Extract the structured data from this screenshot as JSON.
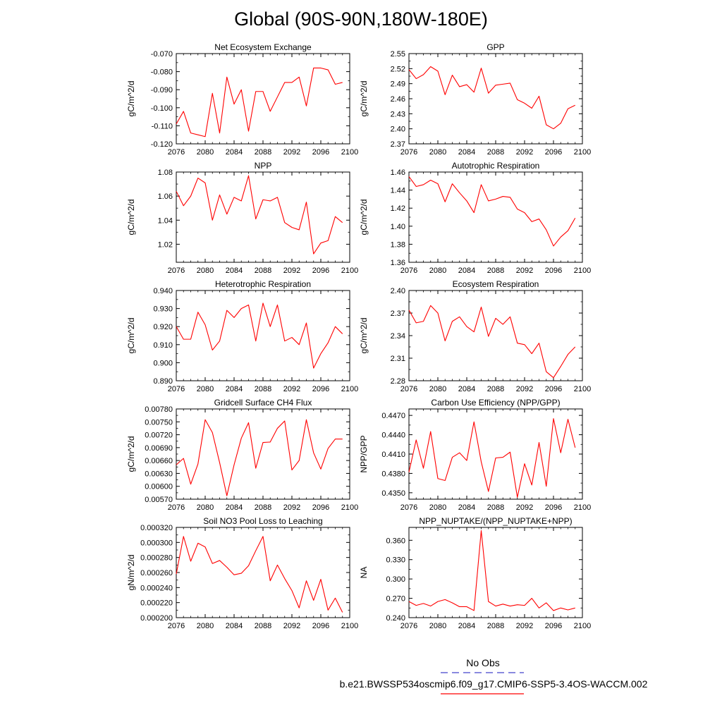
{
  "title": "Global (90S-90N,180W-180E)",
  "legend": {
    "obs_label": "No Obs",
    "case_label": "b.e21.BWSSP534oscmip6.f09_g17.CMIP6-SSP5-3.4OS-WACCM.002",
    "obs_color": "#4444cc",
    "case_color": "#ff0000"
  },
  "chart_data": [
    {
      "type": "line",
      "title": "Net Ecosystem Exchange",
      "ylabel": "gC/m^2/d",
      "xlim": [
        2076,
        2100
      ],
      "xticks": [
        2076,
        2080,
        2084,
        2088,
        2092,
        2096,
        2100
      ],
      "ylim": [
        -0.12,
        -0.07
      ],
      "yticks": [
        "-0.070",
        "-0.080",
        "-0.090",
        "-0.100",
        "-0.110",
        "-0.120"
      ],
      "ytick_values": [
        -0.07,
        -0.08,
        -0.09,
        -0.1,
        -0.11,
        -0.12
      ],
      "x": [
        2076,
        2077,
        2078,
        2079,
        2080,
        2081,
        2082,
        2083,
        2084,
        2085,
        2086,
        2087,
        2088,
        2089,
        2090,
        2091,
        2092,
        2093,
        2094,
        2095,
        2096,
        2097,
        2098,
        2099
      ],
      "values": [
        -0.109,
        -0.102,
        -0.114,
        -0.115,
        -0.116,
        -0.092,
        -0.114,
        -0.083,
        -0.098,
        -0.09,
        -0.113,
        -0.091,
        -0.091,
        -0.102,
        -0.094,
        -0.086,
        -0.086,
        -0.083,
        -0.099,
        -0.078,
        -0.078,
        -0.079,
        -0.087,
        -0.086
      ],
      "color": "#ff0000"
    },
    {
      "type": "line",
      "title": "GPP",
      "ylabel": "gC/m^2/d",
      "xlim": [
        2076,
        2100
      ],
      "xticks": [
        2076,
        2080,
        2084,
        2088,
        2092,
        2096,
        2100
      ],
      "ylim": [
        2.37,
        2.55
      ],
      "yticks": [
        "2.55",
        "2.52",
        "2.49",
        "2.46",
        "2.43",
        "2.40",
        "2.37"
      ],
      "ytick_values": [
        2.55,
        2.52,
        2.49,
        2.46,
        2.43,
        2.4,
        2.37
      ],
      "x": [
        2076,
        2077,
        2078,
        2079,
        2080,
        2081,
        2082,
        2083,
        2084,
        2085,
        2086,
        2087,
        2088,
        2089,
        2090,
        2091,
        2092,
        2093,
        2094,
        2095,
        2096,
        2097,
        2098,
        2099
      ],
      "values": [
        2.518,
        2.5,
        2.508,
        2.524,
        2.515,
        2.468,
        2.507,
        2.484,
        2.488,
        2.473,
        2.521,
        2.471,
        2.487,
        2.489,
        2.491,
        2.458,
        2.451,
        2.441,
        2.465,
        2.408,
        2.4,
        2.411,
        2.44,
        2.447
      ],
      "color": "#ff0000"
    },
    {
      "type": "line",
      "title": "NPP",
      "ylabel": "gC/m^2/d",
      "xlim": [
        2076,
        2100
      ],
      "xticks": [
        2076,
        2080,
        2084,
        2088,
        2092,
        2096,
        2100
      ],
      "ylim": [
        1.005,
        1.08
      ],
      "yticks": [
        "1.08",
        "1.06",
        "1.04",
        "1.02"
      ],
      "ytick_values": [
        1.08,
        1.06,
        1.04,
        1.02
      ],
      "x": [
        2076,
        2077,
        2078,
        2079,
        2080,
        2081,
        2082,
        2083,
        2084,
        2085,
        2086,
        2087,
        2088,
        2089,
        2090,
        2091,
        2092,
        2093,
        2094,
        2095,
        2096,
        2097,
        2098,
        2099
      ],
      "values": [
        1.064,
        1.052,
        1.06,
        1.075,
        1.071,
        1.04,
        1.061,
        1.045,
        1.059,
        1.056,
        1.077,
        1.041,
        1.057,
        1.056,
        1.059,
        1.038,
        1.034,
        1.032,
        1.055,
        1.012,
        1.021,
        1.023,
        1.043,
        1.038
      ],
      "color": "#ff0000"
    },
    {
      "type": "line",
      "title": "Autotrophic Respiration",
      "ylabel": "gC/m^2/d",
      "xlim": [
        2076,
        2100
      ],
      "xticks": [
        2076,
        2080,
        2084,
        2088,
        2092,
        2096,
        2100
      ],
      "ylim": [
        1.36,
        1.46
      ],
      "yticks": [
        "1.46",
        "1.44",
        "1.42",
        "1.40",
        "1.38",
        "1.36"
      ],
      "ytick_values": [
        1.46,
        1.44,
        1.42,
        1.4,
        1.38,
        1.36
      ],
      "x": [
        2076,
        2077,
        2078,
        2079,
        2080,
        2081,
        2082,
        2083,
        2084,
        2085,
        2086,
        2087,
        2088,
        2089,
        2090,
        2091,
        2092,
        2093,
        2094,
        2095,
        2096,
        2097,
        2098,
        2099
      ],
      "values": [
        1.455,
        1.444,
        1.446,
        1.451,
        1.447,
        1.427,
        1.447,
        1.437,
        1.428,
        1.415,
        1.446,
        1.428,
        1.43,
        1.433,
        1.432,
        1.419,
        1.415,
        1.405,
        1.408,
        1.396,
        1.378,
        1.388,
        1.395,
        1.409
      ],
      "color": "#ff0000"
    },
    {
      "type": "line",
      "title": "Heterotrophic Respiration",
      "ylabel": "gC/m^2/d",
      "xlim": [
        2076,
        2100
      ],
      "xticks": [
        2076,
        2080,
        2084,
        2088,
        2092,
        2096,
        2100
      ],
      "ylim": [
        0.89,
        0.94
      ],
      "yticks": [
        "0.940",
        "0.930",
        "0.920",
        "0.910",
        "0.900",
        "0.890"
      ],
      "ytick_values": [
        0.94,
        0.93,
        0.92,
        0.91,
        0.9,
        0.89
      ],
      "x": [
        2076,
        2077,
        2078,
        2079,
        2080,
        2081,
        2082,
        2083,
        2084,
        2085,
        2086,
        2087,
        2088,
        2089,
        2090,
        2091,
        2092,
        2093,
        2094,
        2095,
        2096,
        2097,
        2098,
        2099
      ],
      "values": [
        0.92,
        0.913,
        0.913,
        0.928,
        0.921,
        0.907,
        0.912,
        0.929,
        0.925,
        0.93,
        0.932,
        0.912,
        0.933,
        0.92,
        0.932,
        0.912,
        0.914,
        0.91,
        0.922,
        0.897,
        0.905,
        0.911,
        0.92,
        0.916
      ],
      "color": "#ff0000"
    },
    {
      "type": "line",
      "title": "Ecosystem Respiration",
      "ylabel": "gC/m^2/d",
      "xlim": [
        2076,
        2100
      ],
      "xticks": [
        2076,
        2080,
        2084,
        2088,
        2092,
        2096,
        2100
      ],
      "ylim": [
        2.28,
        2.4
      ],
      "yticks": [
        "2.40",
        "2.37",
        "2.34",
        "2.31",
        "2.28"
      ],
      "ytick_values": [
        2.4,
        2.37,
        2.34,
        2.31,
        2.28
      ],
      "x": [
        2076,
        2077,
        2078,
        2079,
        2080,
        2081,
        2082,
        2083,
        2084,
        2085,
        2086,
        2087,
        2088,
        2089,
        2090,
        2091,
        2092,
        2093,
        2094,
        2095,
        2096,
        2097,
        2098,
        2099
      ],
      "values": [
        2.374,
        2.357,
        2.359,
        2.38,
        2.37,
        2.333,
        2.359,
        2.365,
        2.352,
        2.345,
        2.378,
        2.339,
        2.363,
        2.355,
        2.365,
        2.33,
        2.328,
        2.316,
        2.33,
        2.292,
        2.284,
        2.299,
        2.315,
        2.325
      ],
      "color": "#ff0000"
    },
    {
      "type": "line",
      "title": "Gridcell Surface CH4 Flux",
      "ylabel": "gC/m^2/d",
      "xlim": [
        2076,
        2100
      ],
      "xticks": [
        2076,
        2080,
        2084,
        2088,
        2092,
        2096,
        2100
      ],
      "ylim": [
        0.0057,
        0.0078
      ],
      "yticks": [
        "0.00780",
        "0.00750",
        "0.00720",
        "0.00690",
        "0.00660",
        "0.00630",
        "0.00600",
        "0.00570"
      ],
      "ytick_values": [
        0.0078,
        0.0075,
        0.0072,
        0.0069,
        0.0066,
        0.0063,
        0.006,
        0.0057
      ],
      "x": [
        2076,
        2077,
        2078,
        2079,
        2080,
        2081,
        2082,
        2083,
        2084,
        2085,
        2086,
        2087,
        2088,
        2089,
        2090,
        2091,
        2092,
        2093,
        2094,
        2095,
        2096,
        2097,
        2098,
        2099
      ],
      "values": [
        0.0065,
        0.00665,
        0.00605,
        0.00652,
        0.00755,
        0.00725,
        0.00655,
        0.00578,
        0.0065,
        0.00712,
        0.00748,
        0.00642,
        0.00702,
        0.00703,
        0.00735,
        0.00752,
        0.00638,
        0.0066,
        0.00755,
        0.00678,
        0.0064,
        0.00688,
        0.0071,
        0.0071
      ],
      "color": "#ff0000"
    },
    {
      "type": "line",
      "title": "Carbon Use Efficiency (NPP/GPP)",
      "ylabel": "NPP/GPP",
      "xlim": [
        2076,
        2100
      ],
      "xticks": [
        2076,
        2080,
        2084,
        2088,
        2092,
        2096,
        2100
      ],
      "ylim": [
        0.434,
        0.448
      ],
      "yticks": [
        "0.4470",
        "0.4440",
        "0.4410",
        "0.4380",
        "0.4350"
      ],
      "ytick_values": [
        0.447,
        0.444,
        0.441,
        0.438,
        0.435
      ],
      "x": [
        2076,
        2077,
        2078,
        2079,
        2080,
        2081,
        2082,
        2083,
        2084,
        2085,
        2086,
        2087,
        2088,
        2089,
        2090,
        2091,
        2092,
        2093,
        2094,
        2095,
        2096,
        2097,
        2098,
        2099
      ],
      "values": [
        0.4382,
        0.4432,
        0.4388,
        0.4445,
        0.4372,
        0.4369,
        0.4405,
        0.4412,
        0.44,
        0.446,
        0.4398,
        0.4352,
        0.4404,
        0.4405,
        0.4413,
        0.4343,
        0.4395,
        0.4362,
        0.4428,
        0.436,
        0.4465,
        0.4412,
        0.4464,
        0.442
      ],
      "color": "#ff0000"
    },
    {
      "type": "line",
      "title": "Soil NO3 Pool Loss to Leaching",
      "ylabel": "gN/m^2/d",
      "xlim": [
        2076,
        2100
      ],
      "xticks": [
        2076,
        2080,
        2084,
        2088,
        2092,
        2096,
        2100
      ],
      "ylim": [
        0.0002,
        0.00032
      ],
      "yticks": [
        "0.000320",
        "0.000300",
        "0.000280",
        "0.000260",
        "0.000240",
        "0.000220",
        "0.000200"
      ],
      "ytick_values": [
        0.00032,
        0.0003,
        0.00028,
        0.00026,
        0.00024,
        0.00022,
        0.0002
      ],
      "x": [
        2076,
        2077,
        2078,
        2079,
        2080,
        2081,
        2082,
        2083,
        2084,
        2085,
        2086,
        2087,
        2088,
        2089,
        2090,
        2091,
        2092,
        2093,
        2094,
        2095,
        2096,
        2097,
        2098,
        2099
      ],
      "values": [
        0.000258,
        0.000308,
        0.000275,
        0.000299,
        0.000294,
        0.000272,
        0.000276,
        0.000267,
        0.000257,
        0.000259,
        0.000269,
        0.000289,
        0.000308,
        0.000249,
        0.00027,
        0.000252,
        0.000236,
        0.000213,
        0.000249,
        0.000223,
        0.000251,
        0.00021,
        0.000226,
        0.000207
      ],
      "color": "#ff0000"
    },
    {
      "type": "line",
      "title": "NPP_NUPTAKE/(NPP_NUPTAKE+NPP)",
      "ylabel": "NA",
      "xlim": [
        2076,
        2100
      ],
      "xticks": [
        2076,
        2080,
        2084,
        2088,
        2092,
        2096,
        2100
      ],
      "ylim": [
        0.24,
        0.38
      ],
      "yticks": [
        "0.360",
        "0.330",
        "0.300",
        "0.270",
        "0.240"
      ],
      "ytick_values": [
        0.36,
        0.33,
        0.3,
        0.27,
        0.24
      ],
      "x": [
        2076,
        2077,
        2078,
        2079,
        2080,
        2081,
        2082,
        2083,
        2084,
        2085,
        2086,
        2087,
        2088,
        2089,
        2090,
        2091,
        2092,
        2093,
        2094,
        2095,
        2096,
        2097,
        2098,
        2099
      ],
      "values": [
        0.265,
        0.259,
        0.262,
        0.258,
        0.265,
        0.268,
        0.263,
        0.257,
        0.257,
        0.251,
        0.375,
        0.265,
        0.258,
        0.261,
        0.258,
        0.26,
        0.259,
        0.27,
        0.255,
        0.263,
        0.251,
        0.255,
        0.252,
        0.255
      ],
      "color": "#ff0000"
    }
  ]
}
